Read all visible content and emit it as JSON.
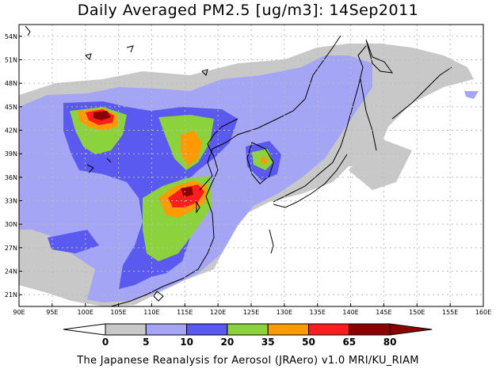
{
  "title": "Daily Averaged PM2.5 [ug/m3]: 14Sep2011",
  "footer": "The Japanese Reanalysis for Aerosol (JRAero) v1.0 MRI/KU_RIAM",
  "map": {
    "lon_range": [
      90,
      160
    ],
    "lat_range": [
      19.5,
      55.5
    ],
    "lon_ticks": [
      "90E",
      "95E",
      "100E",
      "105E",
      "110E",
      "115E",
      "120E",
      "125E",
      "130E",
      "135E",
      "140E",
      "145E",
      "150E",
      "155E",
      "160E"
    ],
    "lat_ticks": [
      "54N",
      "51N",
      "48N",
      "45N",
      "42N",
      "39N",
      "36N",
      "33N",
      "30N",
      "27N",
      "24N",
      "21N"
    ]
  },
  "colorbar": {
    "labels": [
      "0",
      "5",
      "10",
      "20",
      "35",
      "50",
      "65",
      "80"
    ],
    "colors": [
      "#ffffff",
      "#c8c8c8",
      "#a5a5f5",
      "#5a5af0",
      "#8cd23c",
      "#ff9b00",
      "#ff1e1e",
      "#8c0000"
    ]
  }
}
